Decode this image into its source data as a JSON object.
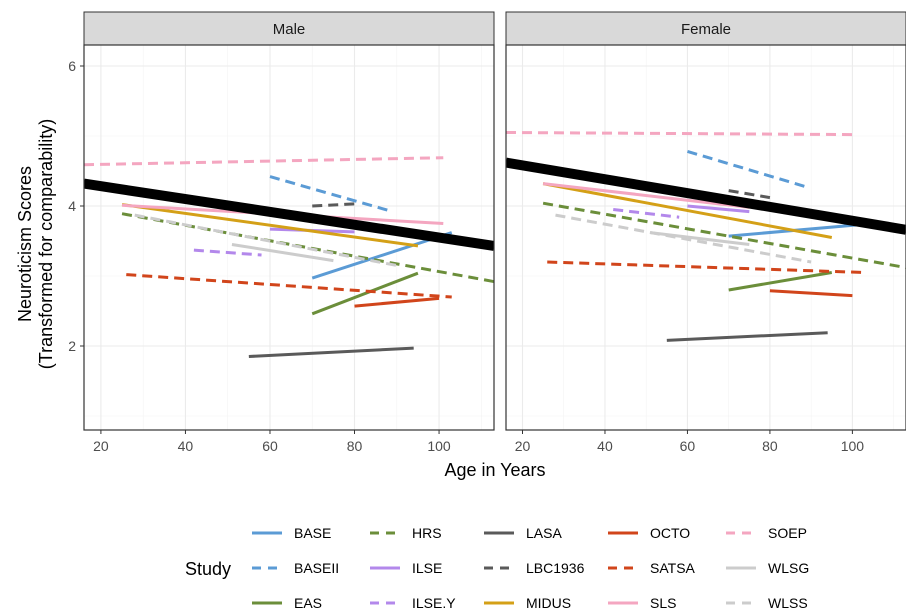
{
  "chart_data": {
    "type": "line",
    "xlabel": "Age in Years",
    "ylabel": [
      "Neuroticism Scores",
      "(Transformed for comparability)"
    ],
    "xlim": [
      16,
      113
    ],
    "ylim": [
      0.8,
      6.3
    ],
    "x_ticks": [
      20,
      40,
      60,
      80,
      100
    ],
    "y_ticks": [
      2,
      4,
      6
    ],
    "grid": true,
    "legend_title": "Study",
    "legend_position": "bottom",
    "facets": [
      "Male",
      "Female"
    ],
    "overall": {
      "name": "",
      "color": "#000000",
      "segments": {
        "Male": [
          [
            16,
            4.32
          ],
          [
            113,
            3.43
          ]
        ],
        "Female": [
          [
            16,
            4.62
          ],
          [
            113,
            3.66
          ]
        ]
      }
    },
    "series": [
      {
        "name": "BASE",
        "color": "#5b9bd5",
        "dash": "solid",
        "segments": {
          "Male": [
            [
              70,
              2.97
            ],
            [
              103,
              3.62
            ]
          ],
          "Female": [
            [
              70,
              3.57
            ],
            [
              103,
              3.74
            ]
          ]
        }
      },
      {
        "name": "BASEII",
        "color": "#5b9bd5",
        "dash": "dashed",
        "segments": {
          "Male": [
            [
              60,
              4.42
            ],
            [
              89,
              3.92
            ]
          ],
          "Female": [
            [
              60,
              4.78
            ],
            [
              89,
              4.27
            ]
          ]
        }
      },
      {
        "name": "EAS",
        "color": "#6b8e3a",
        "dash": "solid",
        "segments": {
          "Male": [
            [
              70,
              2.46
            ],
            [
              95,
              3.04
            ]
          ],
          "Female": [
            [
              70,
              2.8
            ],
            [
              95,
              3.05
            ]
          ]
        }
      },
      {
        "name": "HRS",
        "color": "#6b8e3a",
        "dash": "dashed",
        "segments": {
          "Male": [
            [
              25,
              3.89
            ],
            [
              113,
              2.92
            ]
          ],
          "Female": [
            [
              25,
              4.04
            ],
            [
              113,
              3.12
            ]
          ]
        }
      },
      {
        "name": "ILSE",
        "color": "#b388eb",
        "dash": "solid",
        "segments": {
          "Male": [
            [
              60,
              3.67
            ],
            [
              80,
              3.63
            ]
          ],
          "Female": [
            [
              60,
              4.0
            ],
            [
              75,
              3.92
            ]
          ]
        }
      },
      {
        "name": "ILSE.Y",
        "color": "#b388eb",
        "dash": "dashed",
        "segments": {
          "Male": [
            [
              42,
              3.37
            ],
            [
              58,
              3.3
            ]
          ],
          "Female": [
            [
              42,
              3.95
            ],
            [
              58,
              3.84
            ]
          ]
        }
      },
      {
        "name": "LASA",
        "color": "#5a5a5a",
        "dash": "solid",
        "segments": {
          "Male": [
            [
              55,
              1.85
            ],
            [
              94,
              1.97
            ]
          ],
          "Female": [
            [
              55,
              2.08
            ],
            [
              94,
              2.19
            ]
          ]
        }
      },
      {
        "name": "LBC1936",
        "color": "#5a5a5a",
        "dash": "dashed",
        "segments": {
          "Male": [
            [
              70,
              4.0
            ],
            [
              80,
              4.03
            ]
          ],
          "Female": [
            [
              70,
              4.22
            ],
            [
              80,
              4.12
            ]
          ]
        }
      },
      {
        "name": "MIDUS",
        "color": "#d4a017",
        "dash": "solid",
        "segments": {
          "Male": [
            [
              25,
              4.02
            ],
            [
              95,
              3.43
            ]
          ],
          "Female": [
            [
              25,
              4.32
            ],
            [
              95,
              3.55
            ]
          ]
        }
      },
      {
        "name": "OCTO",
        "color": "#d1451b",
        "dash": "solid",
        "segments": {
          "Male": [
            [
              80,
              2.57
            ],
            [
              100,
              2.68
            ]
          ],
          "Female": [
            [
              80,
              2.79
            ],
            [
              100,
              2.72
            ]
          ]
        }
      },
      {
        "name": "SATSA",
        "color": "#d1451b",
        "dash": "dashed",
        "segments": {
          "Male": [
            [
              26,
              3.02
            ],
            [
              103,
              2.7
            ]
          ],
          "Female": [
            [
              26,
              3.2
            ],
            [
              103,
              3.05
            ]
          ]
        }
      },
      {
        "name": "SLS",
        "color": "#f4a6c0",
        "dash": "solid",
        "segments": {
          "Male": [
            [
              25,
              4.01
            ],
            [
              101,
              3.75
            ]
          ],
          "Female": [
            [
              25,
              4.32
            ],
            [
              75,
              3.98
            ]
          ]
        }
      },
      {
        "name": "SOEP",
        "color": "#f4a6c0",
        "dash": "dashed",
        "segments": {
          "Male": [
            [
              16,
              4.59
            ],
            [
              101,
              4.69
            ]
          ],
          "Female": [
            [
              16,
              5.05
            ],
            [
              101,
              5.02
            ]
          ]
        }
      },
      {
        "name": "WLSG",
        "color": "#cccccc",
        "dash": "solid",
        "segments": {
          "Male": [
            [
              51,
              3.45
            ],
            [
              75,
              3.22
            ]
          ],
          "Female": [
            [
              51,
              3.62
            ],
            [
              75,
              3.45
            ]
          ]
        }
      },
      {
        "name": "WLSS",
        "color": "#cccccc",
        "dash": "dashed",
        "segments": {
          "Male": [
            [
              28,
              3.87
            ],
            [
              90,
              3.15
            ]
          ],
          "Female": [
            [
              28,
              3.87
            ],
            [
              90,
              3.2
            ]
          ]
        }
      }
    ]
  }
}
